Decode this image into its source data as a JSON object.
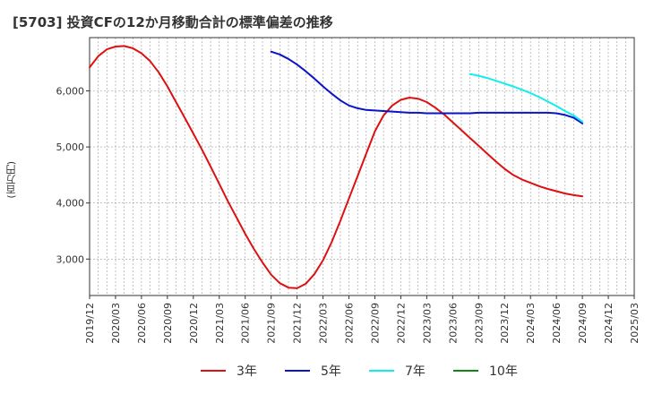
{
  "title": "[5703]  投資CFの12か月移動合計の標準偏差の推移",
  "y_unit": "(百万円)",
  "chart_data": {
    "type": "line",
    "title": "[5703]  投資CFの12か月移動合計の標準偏差の推移",
    "xlabel": "",
    "ylabel": "(百万円)",
    "ylim": [
      2350,
      6950
    ],
    "yticks": [
      3000,
      4000,
      5000,
      6000
    ],
    "ytick_labels": [
      "3,000",
      "4,000",
      "5,000",
      "6,000"
    ],
    "x_ticks": [
      "2019/12",
      "2020/03",
      "2020/06",
      "2020/09",
      "2020/12",
      "2021/03",
      "2021/06",
      "2021/09",
      "2021/12",
      "2022/03",
      "2022/06",
      "2022/09",
      "2022/12",
      "2023/03",
      "2023/06",
      "2023/09",
      "2023/12",
      "2024/03",
      "2024/06",
      "2024/09",
      "2024/12",
      "2025/03"
    ],
    "grid": true,
    "legend_position": "bottom",
    "series": [
      {
        "name": "3年",
        "color": "#dd1111",
        "x": [
          "2019/12",
          "2020/01",
          "2020/02",
          "2020/03",
          "2020/04",
          "2020/05",
          "2020/06",
          "2020/07",
          "2020/08",
          "2020/09",
          "2020/10",
          "2020/11",
          "2020/12",
          "2021/01",
          "2021/02",
          "2021/03",
          "2021/04",
          "2021/05",
          "2021/06",
          "2021/07",
          "2021/08",
          "2021/09",
          "2021/10",
          "2021/11",
          "2021/12",
          "2022/01",
          "2022/02",
          "2022/03",
          "2022/04",
          "2022/05",
          "2022/06",
          "2022/07",
          "2022/08",
          "2022/09",
          "2022/10",
          "2022/11",
          "2022/12",
          "2023/01",
          "2023/02",
          "2023/03",
          "2023/04",
          "2023/05",
          "2023/06",
          "2023/07",
          "2023/08",
          "2023/09",
          "2023/10",
          "2023/11",
          "2023/12",
          "2024/01",
          "2024/02",
          "2024/03",
          "2024/04",
          "2024/05",
          "2024/06",
          "2024/07",
          "2024/08",
          "2024/09"
        ],
        "values": [
          6420,
          6620,
          6740,
          6790,
          6800,
          6760,
          6670,
          6530,
          6330,
          6080,
          5800,
          5520,
          5240,
          4950,
          4650,
          4340,
          4030,
          3740,
          3450,
          3180,
          2940,
          2720,
          2570,
          2490,
          2480,
          2560,
          2730,
          2980,
          3300,
          3680,
          4080,
          4480,
          4880,
          5280,
          5560,
          5740,
          5840,
          5880,
          5860,
          5800,
          5700,
          5580,
          5440,
          5300,
          5160,
          5020,
          4880,
          4740,
          4610,
          4500,
          4420,
          4360,
          4300,
          4250,
          4210,
          4170,
          4140,
          4120
        ]
      },
      {
        "name": "5年",
        "color": "#0a14c8",
        "x": [
          "2021/09",
          "2021/10",
          "2021/11",
          "2021/12",
          "2022/01",
          "2022/02",
          "2022/03",
          "2022/04",
          "2022/05",
          "2022/06",
          "2022/07",
          "2022/08",
          "2022/09",
          "2022/10",
          "2022/11",
          "2022/12",
          "2023/01",
          "2023/02",
          "2023/03",
          "2023/04",
          "2023/05",
          "2023/06",
          "2023/07",
          "2023/08",
          "2023/09",
          "2023/10",
          "2023/11",
          "2023/12",
          "2024/01",
          "2024/02",
          "2024/03",
          "2024/04",
          "2024/05",
          "2024/06",
          "2024/07",
          "2024/08",
          "2024/09"
        ],
        "values": [
          6700,
          6650,
          6570,
          6470,
          6350,
          6220,
          6080,
          5950,
          5830,
          5740,
          5690,
          5660,
          5650,
          5640,
          5630,
          5620,
          5610,
          5610,
          5600,
          5600,
          5600,
          5600,
          5600,
          5600,
          5610,
          5610,
          5610,
          5610,
          5610,
          5610,
          5610,
          5610,
          5610,
          5600,
          5570,
          5520,
          5420
        ]
      },
      {
        "name": "7年",
        "color": "#11eeee",
        "x": [
          "2023/08",
          "2023/09",
          "2023/10",
          "2023/11",
          "2023/12",
          "2024/01",
          "2024/02",
          "2024/03",
          "2024/04",
          "2024/05",
          "2024/06",
          "2024/07",
          "2024/08",
          "2024/09"
        ],
        "values": [
          6300,
          6270,
          6230,
          6180,
          6130,
          6080,
          6020,
          5960,
          5890,
          5810,
          5730,
          5640,
          5560,
          5450
        ]
      },
      {
        "name": "10年",
        "color": "#118811",
        "x": [],
        "values": []
      }
    ]
  }
}
